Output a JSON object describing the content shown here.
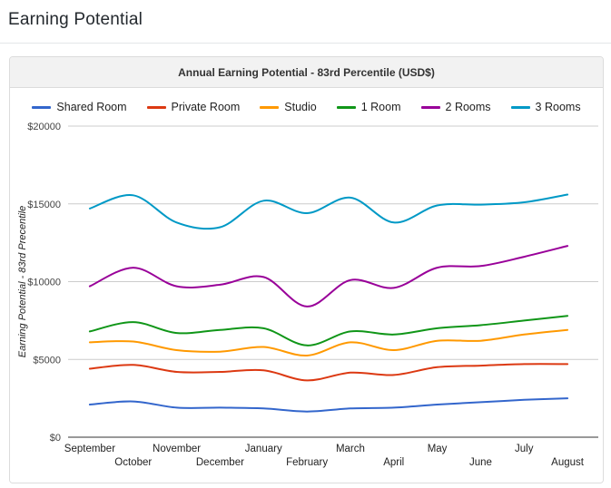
{
  "page": {
    "title": "Earning Potential"
  },
  "panel": {
    "header": "Annual Earning Potential - 83rd Percentile (USD$)"
  },
  "chart_data": {
    "type": "line",
    "curve": "smooth",
    "title": "Annual Earning Potential - 83rd Percentile (USD$)",
    "xlabel": "",
    "ylabel": "Earning Potential - 83rd Precentile",
    "ylim": [
      0,
      20000
    ],
    "y_ticks": [
      0,
      5000,
      10000,
      15000,
      20000
    ],
    "y_tick_labels": [
      "$0",
      "$5000",
      "$10000",
      "$15000",
      "$20000"
    ],
    "grid": true,
    "legend_position": "top",
    "categories": [
      "September",
      "October",
      "November",
      "December",
      "January",
      "February",
      "March",
      "April",
      "May",
      "June",
      "July",
      "August"
    ],
    "series": [
      {
        "name": "Shared Room",
        "color": "#3366CC",
        "values": [
          2100,
          2300,
          1900,
          1900,
          1850,
          1650,
          1850,
          1900,
          2100,
          2250,
          2400,
          2500
        ]
      },
      {
        "name": "Private Room",
        "color": "#DC3912",
        "values": [
          4400,
          4650,
          4200,
          4200,
          4300,
          3650,
          4150,
          4000,
          4500,
          4600,
          4700,
          4700
        ]
      },
      {
        "name": "Studio",
        "color": "#FF9900",
        "values": [
          6100,
          6150,
          5600,
          5500,
          5800,
          5250,
          6100,
          5600,
          6200,
          6200,
          6600,
          6900
        ]
      },
      {
        "name": "1 Room",
        "color": "#109618",
        "values": [
          6800,
          7400,
          6700,
          6900,
          7000,
          5900,
          6800,
          6600,
          7000,
          7200,
          7500,
          7800
        ]
      },
      {
        "name": "2 Rooms",
        "color": "#990099",
        "values": [
          9700,
          10900,
          9700,
          9800,
          10300,
          8400,
          10100,
          9600,
          10900,
          11000,
          11600,
          12300
        ]
      },
      {
        "name": "3 Rooms",
        "color": "#0099C6",
        "values": [
          14700,
          15550,
          13800,
          13500,
          15200,
          14400,
          15400,
          13800,
          14900,
          14950,
          15100,
          15600
        ]
      }
    ]
  },
  "colors": {
    "baseline": "#333333",
    "gridline": "#cccccc",
    "y_tick_label": "#444444",
    "x_tick_label": "#222222",
    "axis_title": "#222222",
    "panel_header_bg": "#f2f2f2",
    "panel_border": "#dddddd"
  }
}
